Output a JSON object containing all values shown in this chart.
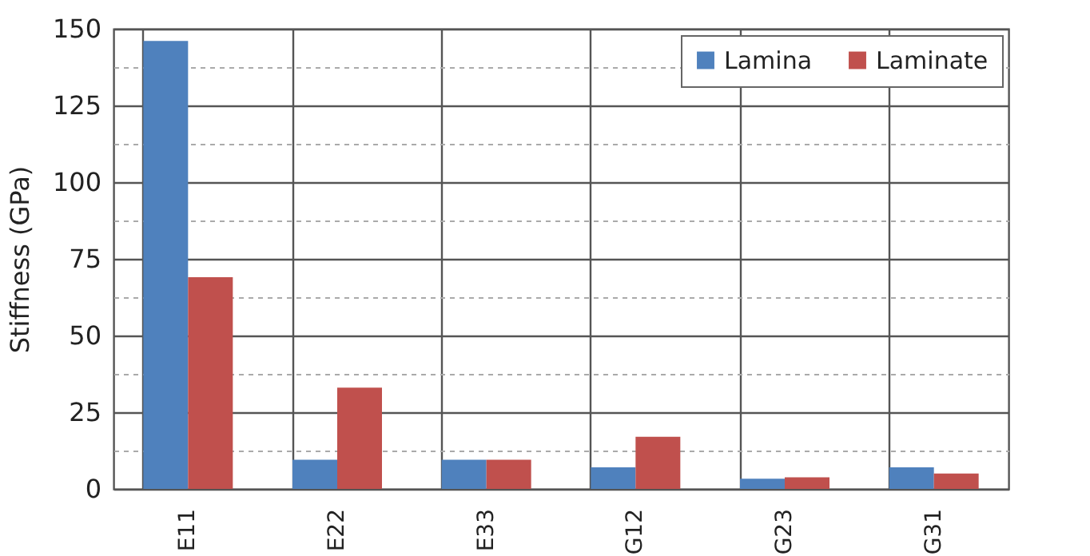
{
  "chart_data": {
    "type": "bar",
    "ylabel": "Stiffness (GPa)",
    "categories": [
      "E11",
      "E22",
      "E33",
      "G12",
      "G23",
      "G31"
    ],
    "series": [
      {
        "name": "Lamina",
        "color": "#4f81bd",
        "values": [
          146,
          9.5,
          9.5,
          7,
          3.3,
          7
        ]
      },
      {
        "name": "Laminate",
        "color": "#c0504d",
        "values": [
          69,
          33,
          9.5,
          17,
          3.8,
          5
        ]
      }
    ],
    "ylim": [
      0,
      150
    ],
    "yticks": [
      0,
      {
        "value": 12.5,
        "label": null
      },
      25,
      {
        "value": 37.5,
        "label": null
      },
      50,
      {
        "value": 62.5,
        "label": null
      },
      75,
      {
        "value": 87.5,
        "label": null
      },
      100,
      {
        "value": 112.5,
        "label": null
      },
      125,
      {
        "value": 137.5,
        "label": null
      },
      150
    ],
    "grid": true,
    "legend": "top right"
  }
}
